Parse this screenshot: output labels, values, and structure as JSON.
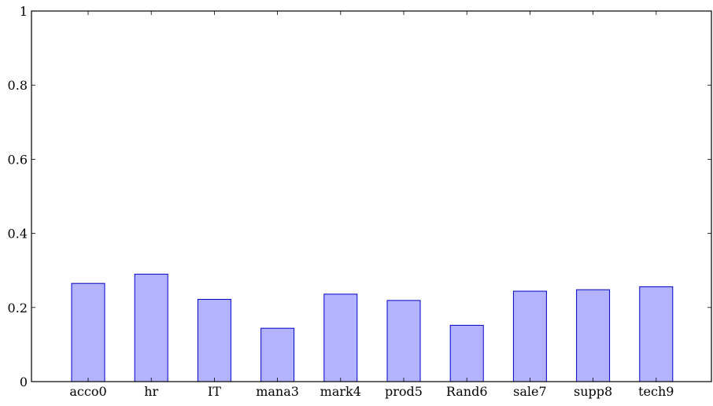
{
  "chart_data": {
    "type": "bar",
    "categories": [
      "acco0",
      "hr",
      "IT",
      "mana3",
      "mark4",
      "prod5",
      "Rand6",
      "sale7",
      "supp8",
      "tech9"
    ],
    "values": [
      0.265,
      0.29,
      0.222,
      0.144,
      0.236,
      0.219,
      0.152,
      0.244,
      0.248,
      0.256
    ],
    "ylim": [
      0,
      1
    ],
    "yticks": [
      0,
      0.2,
      0.4,
      0.6,
      0.8,
      1
    ],
    "ytick_labels": [
      "0",
      "0.2",
      "0.4",
      "0.6",
      "0.8",
      "1"
    ],
    "grid": false,
    "colors": {
      "bar_fill": "#b3b3ff",
      "bar_stroke": "#0000cc"
    }
  }
}
